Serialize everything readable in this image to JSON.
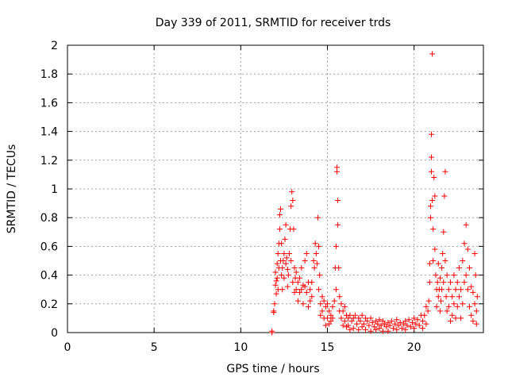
{
  "chart_data": {
    "type": "scatter",
    "title": "Day 339 of 2011, SRMTID for receiver trds",
    "xlabel": "GPS time / hours",
    "ylabel": "SRMTID / TECUs",
    "xlim": [
      0,
      24
    ],
    "ylim": [
      0,
      2
    ],
    "xticks": [
      "0",
      "5",
      "10",
      "15",
      "20"
    ],
    "xtick_values": [
      0,
      5,
      10,
      15,
      20
    ],
    "yticks": [
      "0",
      "0.2",
      "0.4",
      "0.6",
      "0.8",
      "1",
      "1.2",
      "1.4",
      "1.6",
      "1.8",
      "2"
    ],
    "ytick_values": [
      0,
      0.2,
      0.4,
      0.6,
      0.8,
      1.0,
      1.2,
      1.4,
      1.6,
      1.8,
      2.0
    ],
    "grid": true,
    "marker": "+",
    "marker_color": "#ff0000",
    "series": [
      {
        "name": "SRMTID",
        "points": [
          [
            11.8,
            0.0
          ],
          [
            11.8,
            0.01
          ],
          [
            11.9,
            0.14
          ],
          [
            11.9,
            0.15
          ],
          [
            11.95,
            0.2
          ],
          [
            12.0,
            0.33
          ],
          [
            12.0,
            0.42
          ],
          [
            12.05,
            0.36
          ],
          [
            12.05,
            0.27
          ],
          [
            12.1,
            0.48
          ],
          [
            12.1,
            0.38
          ],
          [
            12.15,
            0.55
          ],
          [
            12.15,
            0.3
          ],
          [
            12.2,
            0.62
          ],
          [
            12.2,
            0.45
          ],
          [
            12.25,
            0.72
          ],
          [
            12.25,
            0.82
          ],
          [
            12.3,
            0.86
          ],
          [
            12.3,
            0.5
          ],
          [
            12.35,
            0.62
          ],
          [
            12.35,
            0.4
          ],
          [
            12.4,
            0.45
          ],
          [
            12.4,
            0.3
          ],
          [
            12.45,
            0.5
          ],
          [
            12.5,
            0.55
          ],
          [
            12.5,
            0.38
          ],
          [
            12.55,
            0.65
          ],
          [
            12.6,
            0.75
          ],
          [
            12.6,
            0.48
          ],
          [
            12.65,
            0.52
          ],
          [
            12.7,
            0.44
          ],
          [
            12.7,
            0.32
          ],
          [
            12.75,
            0.4
          ],
          [
            12.8,
            0.55
          ],
          [
            12.85,
            0.72
          ],
          [
            12.9,
            0.88
          ],
          [
            12.9,
            0.5
          ],
          [
            12.95,
            0.98
          ],
          [
            13.0,
            0.92
          ],
          [
            13.0,
            0.35
          ],
          [
            13.05,
            0.72
          ],
          [
            13.1,
            0.45
          ],
          [
            13.1,
            0.28
          ],
          [
            13.15,
            0.38
          ],
          [
            13.2,
            0.3
          ],
          [
            13.2,
            0.42
          ],
          [
            13.3,
            0.35
          ],
          [
            13.3,
            0.22
          ],
          [
            13.4,
            0.38
          ],
          [
            13.4,
            0.28
          ],
          [
            13.5,
            0.45
          ],
          [
            13.5,
            0.3
          ],
          [
            13.6,
            0.33
          ],
          [
            13.6,
            0.2
          ],
          [
            13.7,
            0.5
          ],
          [
            13.7,
            0.32
          ],
          [
            13.8,
            0.55
          ],
          [
            13.8,
            0.28
          ],
          [
            13.9,
            0.35
          ],
          [
            13.9,
            0.18
          ],
          [
            14.0,
            0.3
          ],
          [
            14.0,
            0.22
          ],
          [
            14.1,
            0.35
          ],
          [
            14.1,
            0.25
          ],
          [
            14.2,
            0.5
          ],
          [
            14.25,
            0.45
          ],
          [
            14.3,
            0.62
          ],
          [
            14.35,
            0.55
          ],
          [
            14.4,
            0.48
          ],
          [
            14.45,
            0.8
          ],
          [
            14.5,
            0.6
          ],
          [
            14.5,
            0.3
          ],
          [
            14.55,
            0.4
          ],
          [
            14.6,
            0.2
          ],
          [
            14.6,
            0.12
          ],
          [
            14.7,
            0.25
          ],
          [
            14.7,
            0.15
          ],
          [
            14.8,
            0.22
          ],
          [
            14.8,
            0.1
          ],
          [
            14.9,
            0.18
          ],
          [
            14.9,
            0.05
          ],
          [
            15.0,
            0.2
          ],
          [
            15.0,
            0.1
          ],
          [
            15.1,
            0.15
          ],
          [
            15.1,
            0.06
          ],
          [
            15.2,
            0.12
          ],
          [
            15.2,
            0.08
          ],
          [
            15.3,
            0.18
          ],
          [
            15.3,
            0.1
          ],
          [
            15.4,
            0.22
          ],
          [
            15.45,
            0.45
          ],
          [
            15.5,
            0.6
          ],
          [
            15.5,
            0.3
          ],
          [
            15.55,
            1.15
          ],
          [
            15.55,
            1.12
          ],
          [
            15.6,
            0.92
          ],
          [
            15.6,
            0.75
          ],
          [
            15.65,
            0.45
          ],
          [
            15.7,
            0.25
          ],
          [
            15.7,
            0.15
          ],
          [
            15.8,
            0.2
          ],
          [
            15.8,
            0.1
          ],
          [
            15.9,
            0.15
          ],
          [
            15.9,
            0.05
          ],
          [
            16.0,
            0.18
          ],
          [
            16.0,
            0.08
          ],
          [
            16.1,
            0.12
          ],
          [
            16.1,
            0.04
          ],
          [
            16.2,
            0.1
          ],
          [
            16.2,
            0.05
          ],
          [
            16.3,
            0.12
          ],
          [
            16.3,
            0.02
          ],
          [
            16.4,
            0.08
          ],
          [
            16.5,
            0.1
          ],
          [
            16.5,
            0.03
          ],
          [
            16.6,
            0.12
          ],
          [
            16.7,
            0.06
          ],
          [
            16.8,
            0.1
          ],
          [
            16.8,
            0.02
          ],
          [
            16.9,
            0.08
          ],
          [
            17.0,
            0.12
          ],
          [
            17.0,
            0.04
          ],
          [
            17.1,
            0.06
          ],
          [
            17.2,
            0.1
          ],
          [
            17.2,
            0.02
          ],
          [
            17.3,
            0.08
          ],
          [
            17.4,
            0.05
          ],
          [
            17.5,
            0.1
          ],
          [
            17.5,
            0.01
          ],
          [
            17.6,
            0.07
          ],
          [
            17.7,
            0.04
          ],
          [
            17.8,
            0.08
          ],
          [
            17.8,
            0.02
          ],
          [
            17.9,
            0.06
          ],
          [
            18.0,
            0.09
          ],
          [
            18.0,
            0.03
          ],
          [
            18.1,
            0.05
          ],
          [
            18.2,
            0.08
          ],
          [
            18.2,
            0.01
          ],
          [
            18.3,
            0.06
          ],
          [
            18.4,
            0.04
          ],
          [
            18.5,
            0.07
          ],
          [
            18.5,
            0.01
          ],
          [
            18.6,
            0.05
          ],
          [
            18.7,
            0.08
          ],
          [
            18.8,
            0.03
          ],
          [
            18.9,
            0.06
          ],
          [
            19.0,
            0.09
          ],
          [
            19.0,
            0.02
          ],
          [
            19.1,
            0.05
          ],
          [
            19.2,
            0.07
          ],
          [
            19.3,
            0.03
          ],
          [
            19.4,
            0.06
          ],
          [
            19.5,
            0.08
          ],
          [
            19.5,
            0.02
          ],
          [
            19.6,
            0.05
          ],
          [
            19.7,
            0.09
          ],
          [
            19.8,
            0.04
          ],
          [
            19.9,
            0.07
          ],
          [
            20.0,
            0.1
          ],
          [
            20.0,
            0.03
          ],
          [
            20.1,
            0.06
          ],
          [
            20.2,
            0.09
          ],
          [
            20.3,
            0.05
          ],
          [
            20.4,
            0.12
          ],
          [
            20.5,
            0.08
          ],
          [
            20.5,
            0.03
          ],
          [
            20.6,
            0.12
          ],
          [
            20.7,
            0.18
          ],
          [
            20.7,
            0.06
          ],
          [
            20.8,
            0.15
          ],
          [
            20.85,
            0.22
          ],
          [
            20.9,
            0.35
          ],
          [
            20.9,
            0.48
          ],
          [
            20.95,
            0.8
          ],
          [
            20.95,
            0.88
          ],
          [
            21.0,
            1.12
          ],
          [
            21.0,
            1.22
          ],
          [
            21.0,
            1.38
          ],
          [
            21.05,
            1.94
          ],
          [
            21.05,
            0.92
          ],
          [
            21.1,
            0.72
          ],
          [
            21.1,
            0.5
          ],
          [
            21.15,
            1.08
          ],
          [
            21.2,
            0.95
          ],
          [
            21.2,
            0.58
          ],
          [
            21.25,
            0.4
          ],
          [
            21.3,
            0.3
          ],
          [
            21.3,
            0.18
          ],
          [
            21.35,
            0.35
          ],
          [
            21.4,
            0.48
          ],
          [
            21.4,
            0.25
          ],
          [
            21.45,
            0.3
          ],
          [
            21.5,
            0.38
          ],
          [
            21.5,
            0.15
          ],
          [
            21.55,
            0.22
          ],
          [
            21.6,
            0.45
          ],
          [
            21.6,
            0.3
          ],
          [
            21.65,
            0.55
          ],
          [
            21.7,
            0.7
          ],
          [
            21.7,
            0.35
          ],
          [
            21.75,
            0.95
          ],
          [
            21.8,
            1.12
          ],
          [
            21.8,
            0.5
          ],
          [
            21.85,
            0.25
          ],
          [
            21.9,
            0.4
          ],
          [
            21.9,
            0.15
          ],
          [
            22.0,
            0.3
          ],
          [
            22.0,
            0.18
          ],
          [
            22.1,
            0.35
          ],
          [
            22.1,
            0.08
          ],
          [
            22.2,
            0.25
          ],
          [
            22.2,
            0.12
          ],
          [
            22.3,
            0.4
          ],
          [
            22.3,
            0.2
          ],
          [
            22.4,
            0.3
          ],
          [
            22.4,
            0.1
          ],
          [
            22.5,
            0.35
          ],
          [
            22.5,
            0.18
          ],
          [
            22.6,
            0.45
          ],
          [
            22.6,
            0.25
          ],
          [
            22.7,
            0.3
          ],
          [
            22.7,
            0.1
          ],
          [
            22.8,
            0.5
          ],
          [
            22.8,
            0.2
          ],
          [
            22.9,
            0.62
          ],
          [
            22.9,
            0.35
          ],
          [
            23.0,
            0.75
          ],
          [
            23.0,
            0.4
          ],
          [
            23.1,
            0.58
          ],
          [
            23.1,
            0.3
          ],
          [
            23.2,
            0.45
          ],
          [
            23.2,
            0.18
          ],
          [
            23.3,
            0.32
          ],
          [
            23.3,
            0.12
          ],
          [
            23.4,
            0.28
          ],
          [
            23.4,
            0.08
          ],
          [
            23.5,
            0.55
          ],
          [
            23.5,
            0.2
          ],
          [
            23.55,
            0.4
          ],
          [
            23.6,
            0.15
          ],
          [
            23.6,
            0.06
          ],
          [
            23.65,
            0.25
          ]
        ]
      }
    ]
  }
}
